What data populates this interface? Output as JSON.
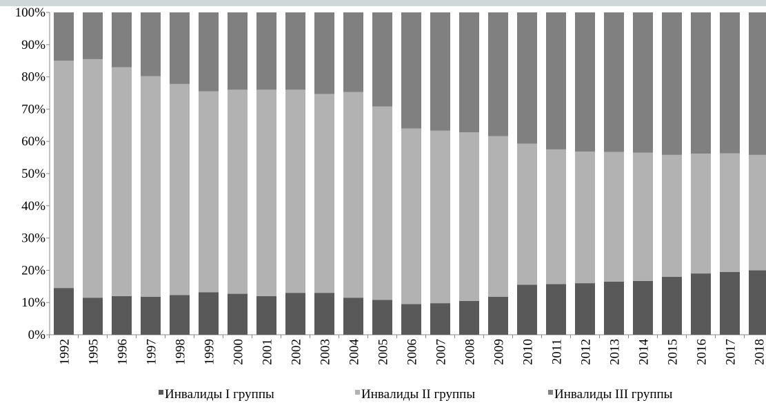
{
  "chart_data": {
    "type": "bar",
    "stacked": true,
    "normalized_percent": true,
    "categories": [
      "1992",
      "1995",
      "1996",
      "1997",
      "1998",
      "1999",
      "2000",
      "2001",
      "2002",
      "2003",
      "2004",
      "2005",
      "2006",
      "2007",
      "2008",
      "2009",
      "2010",
      "2011",
      "2012",
      "2013",
      "2014",
      "2015",
      "2016",
      "2017",
      "2018"
    ],
    "series": [
      {
        "name": "Инвалиды I группы",
        "color": "#595959",
        "values": [
          14.5,
          11.5,
          12,
          11.8,
          12.3,
          13.2,
          12.7,
          12,
          13,
          13,
          11.5,
          10.8,
          9.5,
          9.8,
          10.5,
          11.8,
          15.5,
          15.7,
          16,
          16.5,
          16.7,
          18,
          19,
          19.5,
          20
        ]
      },
      {
        "name": "Инвалиды II группы",
        "color": "#b2b2b2",
        "values": [
          70.5,
          74,
          71,
          68.4,
          65.5,
          62.3,
          63.3,
          64,
          63,
          61.7,
          63.8,
          60,
          54.5,
          53.5,
          52.3,
          49.8,
          43.8,
          41.8,
          40.8,
          40.2,
          39.8,
          37.8,
          37.2,
          36.8,
          35.8
        ]
      },
      {
        "name": "Инвалиды III группы",
        "color": "#808080",
        "values": [
          15,
          14.5,
          17,
          19.8,
          22.2,
          24.5,
          24,
          24,
          24,
          25.3,
          24.7,
          29.2,
          36,
          36.7,
          37.2,
          38.4,
          40.7,
          42.5,
          43.2,
          43.3,
          43.5,
          44.2,
          43.8,
          43.7,
          44.2
        ]
      }
    ],
    "ylim": [
      0,
      100
    ],
    "y_ticks": [
      "0%",
      "10%",
      "20%",
      "30%",
      "40%",
      "50%",
      "60%",
      "70%",
      "80%",
      "90%",
      "100%"
    ],
    "grid": false,
    "legend_position": "bottom",
    "title": "",
    "xlabel": "",
    "ylabel": ""
  }
}
